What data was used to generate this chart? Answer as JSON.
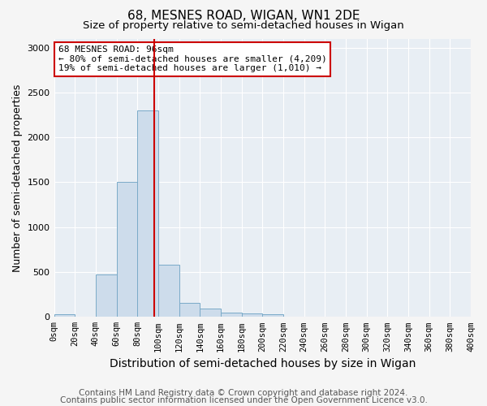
{
  "title": "68, MESNES ROAD, WIGAN, WN1 2DE",
  "subtitle": "Size of property relative to semi-detached houses in Wigan",
  "xlabel": "Distribution of semi-detached houses by size in Wigan",
  "ylabel": "Number of semi-detached properties",
  "bin_edges": [
    0,
    20,
    40,
    60,
    80,
    100,
    120,
    140,
    160,
    180,
    200,
    220,
    240,
    260,
    280,
    300,
    320,
    340,
    360,
    380,
    400
  ],
  "bar_heights": [
    30,
    2,
    470,
    1500,
    2300,
    580,
    155,
    90,
    50,
    40,
    30,
    5,
    2,
    2,
    1,
    1,
    0,
    0,
    0,
    0
  ],
  "bar_color": "#cddceb",
  "bar_edge_color": "#7aaac8",
  "property_size": 96,
  "property_line_color": "#cc0000",
  "annotation_text": "68 MESNES ROAD: 96sqm\n← 80% of semi-detached houses are smaller (4,209)\n19% of semi-detached houses are larger (1,010) →",
  "annotation_box_color": "#ffffff",
  "annotation_box_edge_color": "#cc0000",
  "footer_line1": "Contains HM Land Registry data © Crown copyright and database right 2024.",
  "footer_line2": "Contains public sector information licensed under the Open Government Licence v3.0.",
  "tick_labels": [
    "0sqm",
    "20sqm",
    "40sqm",
    "60sqm",
    "80sqm",
    "100sqm",
    "120sqm",
    "140sqm",
    "160sqm",
    "180sqm",
    "200sqm",
    "220sqm",
    "240sqm",
    "260sqm",
    "280sqm",
    "300sqm",
    "320sqm",
    "340sqm",
    "360sqm",
    "380sqm",
    "400sqm"
  ],
  "xlim": [
    0,
    400
  ],
  "ylim": [
    0,
    3100
  ],
  "yticks": [
    0,
    500,
    1000,
    1500,
    2000,
    2500,
    3000
  ],
  "background_color": "#e8eef4",
  "grid_color": "#ffffff",
  "title_fontsize": 11,
  "subtitle_fontsize": 9.5,
  "xlabel_fontsize": 10,
  "ylabel_fontsize": 9,
  "tick_fontsize": 7.5,
  "footer_fontsize": 7.5,
  "annotation_fontsize": 8
}
